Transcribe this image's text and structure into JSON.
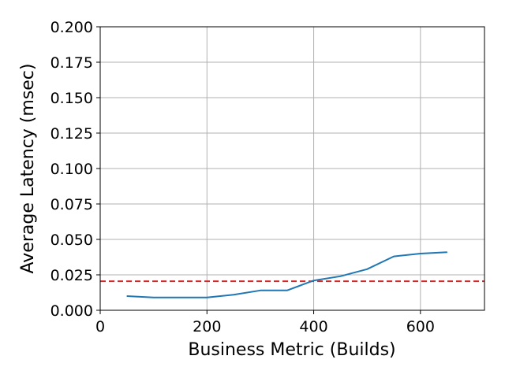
{
  "chart_data": {
    "type": "line",
    "title": "",
    "xlabel": "Business Metric (Builds)",
    "ylabel": "Average Latency (msec)",
    "xlim": [
      0,
      720
    ],
    "ylim": [
      0,
      0.2
    ],
    "x_ticks": [
      0,
      200,
      400,
      600
    ],
    "x_tick_labels": [
      "0",
      "200",
      "400",
      "600"
    ],
    "y_ticks": [
      0,
      0.025,
      0.05,
      0.075,
      0.1,
      0.125,
      0.15,
      0.175,
      0.2
    ],
    "y_tick_labels": [
      "0.000",
      "0.025",
      "0.050",
      "0.075",
      "0.100",
      "0.125",
      "0.150",
      "0.175",
      "0.200"
    ],
    "grid": true,
    "series": [
      {
        "x": [
          50,
          100,
          150,
          200,
          250,
          300,
          350,
          400,
          450,
          500,
          550,
          600,
          650
        ],
        "y": [
          0.01,
          0.009,
          0.009,
          0.009,
          0.011,
          0.014,
          0.014,
          0.021,
          0.024,
          0.029,
          0.038,
          0.04,
          0.041
        ],
        "color": "#1f77b4"
      }
    ],
    "reference_line": {
      "y": 0.0205,
      "color": "#d62728",
      "style": "dashed"
    }
  }
}
